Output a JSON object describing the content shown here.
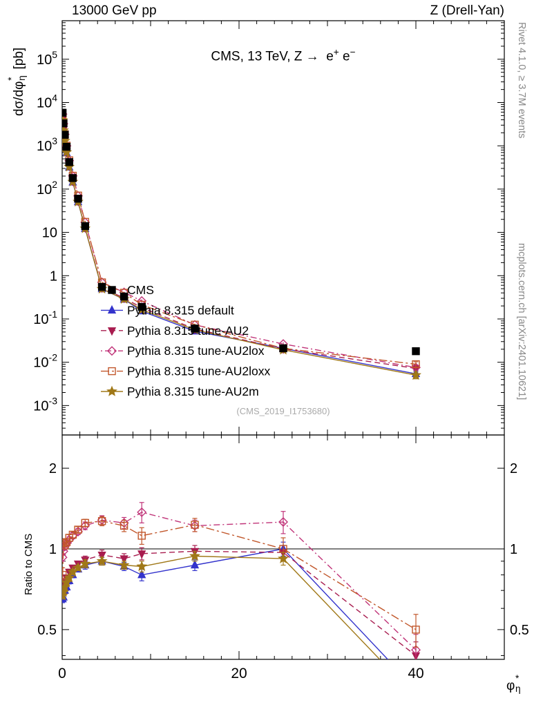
{
  "page": {
    "beam": "13000 GeV pp",
    "process": "Z (Drell-Yan)",
    "title_html": "CMS, 13 TeV, Z &#8594;&nbsp; e<sup>+</sup> e<sup>&#8722;</sup>",
    "watermark": "(CMS_2019_I1753680)",
    "rivet_note": "Rivet 4.1.0, ≥ 3.7M events",
    "mcplots_note": "mcplots.cern.ch [arXiv:2401.10621]",
    "ylabel_main_html": "d&#963;/d&#966;<span class=\"ss\"><sup>*</sup><sub>&#951;</sub></span> [pb]",
    "ylabel_ratio": "Ratio to CMS",
    "xlabel_html": "&#966;<span class=\"ss\"><sup>*</sup><sub>&#951;</sub></span>"
  },
  "chart_data": {
    "type": "line",
    "title": "CMS, 13 TeV, Z -> e+ e-",
    "xlabel": "phi*_eta",
    "ylabel": "dsigma/dphi*_eta [pb]",
    "ratio_label": "Ratio to CMS",
    "x_range": [
      0,
      50
    ],
    "x_ticks": [
      0,
      20,
      40
    ],
    "x_minor_step": 2,
    "main_y_log_range": [
      -3.68,
      5.89
    ],
    "main_y_tick_exponents": [
      5,
      4,
      3,
      2,
      1,
      0,
      -1,
      -2,
      -3
    ],
    "ratio_y_log_range": [
      -0.412,
      0.425
    ],
    "ratio_ticks": [
      2,
      1,
      0.5
    ],
    "ratio_minor_ticks": [
      0.4,
      0.6,
      0.7,
      0.8,
      0.9
    ],
    "ratio_ref_line": 1,
    "x": [
      0.05,
      0.15,
      0.3,
      0.5,
      0.8,
      1.2,
      1.8,
      2.6,
      4.5,
      7,
      9,
      15,
      25,
      40
    ],
    "cms": {
      "label": "CMS",
      "color": "#000000",
      "marker": "square",
      "y": [
        5800,
        3300,
        1800,
        950,
        420,
        180,
        60,
        14,
        0.55,
        0.33,
        0.19,
        0.06,
        0.021,
        0.018
      ],
      "err_rel": [
        0.02,
        0.02,
        0.02,
        0.02,
        0.02,
        0.02,
        0.03,
        0.03,
        0.03,
        0.03,
        0.04,
        0.04,
        0.05,
        0.1
      ]
    },
    "series": [
      {
        "label": "Pythia 8.315 default",
        "color": "#3333cc",
        "line": "solid",
        "marker": "triangle-up",
        "filled": true,
        "ratio": [
          0.65,
          0.66,
          0.7,
          0.72,
          0.76,
          0.8,
          0.84,
          0.87,
          0.9,
          0.86,
          0.8,
          0.87,
          1.0,
          0.3
        ],
        "ratio_err": [
          0.02,
          0.02,
          0.02,
          0.02,
          0.02,
          0.02,
          0.02,
          0.03,
          0.03,
          0.03,
          0.04,
          0.04,
          0.06,
          0.05
        ]
      },
      {
        "label": "Pythia 8.315 tune-AU2",
        "color": "#a81c4f",
        "line": "dash",
        "marker": "triangle-down",
        "filled": true,
        "ratio": [
          0.7,
          0.72,
          0.75,
          0.78,
          0.82,
          0.85,
          0.88,
          0.91,
          0.95,
          0.92,
          0.96,
          0.98,
          0.97,
          0.4
        ],
        "ratio_err": [
          0.02,
          0.02,
          0.02,
          0.02,
          0.02,
          0.02,
          0.02,
          0.03,
          0.04,
          0.04,
          0.05,
          0.05,
          0.06,
          0.05
        ]
      },
      {
        "label": "Pythia 8.315 tune-AU2lox",
        "color": "#c03378",
        "line": "dashdot",
        "marker": "diamond",
        "filled": false,
        "ratio": [
          0.93,
          0.98,
          1.02,
          1.05,
          1.08,
          1.12,
          1.16,
          1.22,
          1.28,
          1.25,
          1.37,
          1.22,
          1.26,
          0.42
        ],
        "ratio_err": [
          0.03,
          0.03,
          0.03,
          0.03,
          0.03,
          0.03,
          0.03,
          0.04,
          0.05,
          0.06,
          0.12,
          0.06,
          0.12,
          0.06
        ]
      },
      {
        "label": "Pythia 8.315 tune-AU2loxx",
        "color": "#c1562a",
        "line": "dashdotlong",
        "marker": "open-square",
        "filled": false,
        "ratio": [
          0.8,
          1.05,
          1.03,
          1.06,
          1.1,
          1.13,
          1.18,
          1.25,
          1.27,
          1.22,
          1.12,
          1.23,
          1.0,
          0.5
        ],
        "ratio_err": [
          0.05,
          0.03,
          0.03,
          0.03,
          0.03,
          0.03,
          0.03,
          0.04,
          0.05,
          0.06,
          0.08,
          0.07,
          0.1,
          0.07
        ]
      },
      {
        "label": "Pythia 8.315 tune-AU2m",
        "color": "#a07818",
        "line": "solid",
        "marker": "star",
        "filled": true,
        "ratio": [
          0.67,
          0.69,
          0.72,
          0.75,
          0.78,
          0.82,
          0.85,
          0.88,
          0.9,
          0.87,
          0.86,
          0.94,
          0.92,
          0.28
        ],
        "ratio_err": [
          0.02,
          0.02,
          0.02,
          0.02,
          0.02,
          0.02,
          0.02,
          0.03,
          0.03,
          0.03,
          0.04,
          0.04,
          0.05,
          0.05
        ]
      }
    ],
    "legend_entries": [
      "CMS",
      "Pythia 8.315 default",
      "Pythia 8.315 tune-AU2",
      "Pythia 8.315 tune-AU2lox",
      "Pythia 8.315 tune-AU2loxx",
      "Pythia 8.315 tune-AU2m"
    ]
  }
}
